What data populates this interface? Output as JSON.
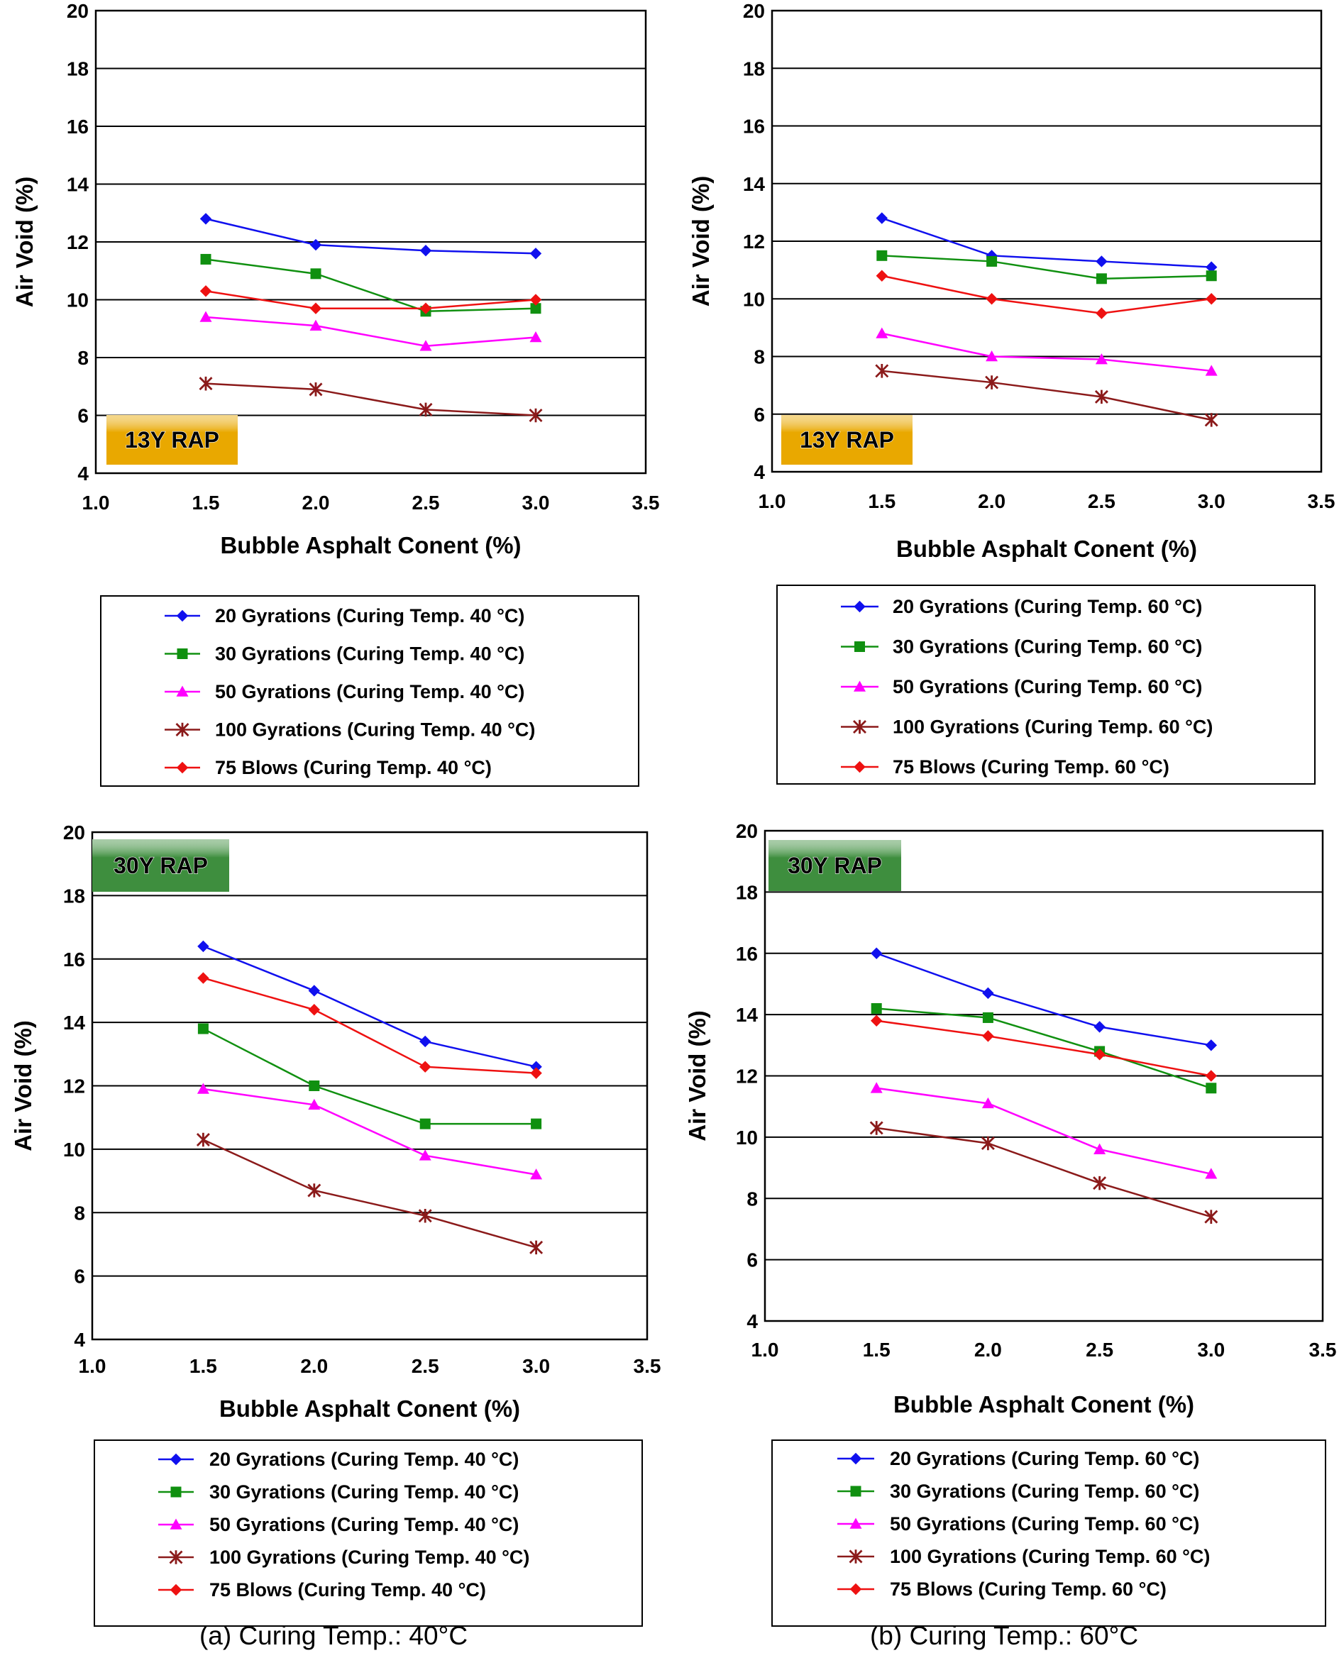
{
  "captions": {
    "a": "(a) Curing Temp.: 40°C",
    "b": "(b) Curing Temp.: 60°C"
  },
  "chart_data": [
    {
      "type": "line",
      "badge": "13Y RAP",
      "badge_color": "#e9a800",
      "xlabel": "Bubble Asphalt Conent (%)",
      "ylabel": "Air Void (%)",
      "xlim": [
        1.0,
        3.5
      ],
      "ylim": [
        4,
        20
      ],
      "xticks": [
        "1.0",
        "1.5",
        "2.0",
        "2.5",
        "3.0",
        "3.5"
      ],
      "yticks": [
        "4",
        "6",
        "8",
        "10",
        "12",
        "14",
        "16",
        "18",
        "20"
      ],
      "x": [
        1.5,
        2.0,
        2.5,
        3.0
      ],
      "series": [
        {
          "name": "20 Gyrations (Curing Temp. 40 °C)",
          "color": "#1010ee",
          "marker": "diamond",
          "values": [
            12.8,
            11.9,
            11.7,
            11.6
          ]
        },
        {
          "name": "30 Gyrations (Curing Temp. 40 °C)",
          "color": "#109010",
          "marker": "square",
          "values": [
            11.4,
            10.9,
            9.6,
            9.7
          ]
        },
        {
          "name": "50 Gyrations (Curing Temp. 40 °C)",
          "color": "#ff00ff",
          "marker": "triangle",
          "values": [
            9.4,
            9.1,
            8.4,
            8.7
          ]
        },
        {
          "name": "100 Gyrations (Curing Temp. 40 °C)",
          "color": "#8b1a1a",
          "marker": "star",
          "values": [
            7.1,
            6.9,
            6.2,
            6.0
          ]
        },
        {
          "name": "75 Blows (Curing Temp. 40 °C)",
          "color": "#ee1111",
          "marker": "diamond",
          "values": [
            10.3,
            9.7,
            9.7,
            10.0
          ]
        }
      ]
    },
    {
      "type": "line",
      "badge": "13Y RAP",
      "badge_color": "#e9a800",
      "xlabel": "Bubble Asphalt Conent (%)",
      "ylabel": "Air Void (%)",
      "xlim": [
        1.0,
        3.5
      ],
      "ylim": [
        4,
        20
      ],
      "xticks": [
        "1.0",
        "1.5",
        "2.0",
        "2.5",
        "3.0",
        "3.5"
      ],
      "yticks": [
        "4",
        "6",
        "8",
        "10",
        "12",
        "14",
        "16",
        "18",
        "20"
      ],
      "x": [
        1.5,
        2.0,
        2.5,
        3.0
      ],
      "series": [
        {
          "name": "20 Gyrations (Curing Temp. 60 °C)",
          "color": "#1010ee",
          "marker": "diamond",
          "values": [
            12.8,
            11.5,
            11.3,
            11.1
          ]
        },
        {
          "name": "30 Gyrations (Curing Temp. 60 °C)",
          "color": "#109010",
          "marker": "square",
          "values": [
            11.5,
            11.3,
            10.7,
            10.8
          ]
        },
        {
          "name": "50 Gyrations (Curing Temp. 60 °C)",
          "color": "#ff00ff",
          "marker": "triangle",
          "values": [
            8.8,
            8.0,
            7.9,
            7.5
          ]
        },
        {
          "name": "100 Gyrations (Curing Temp. 60 °C)",
          "color": "#8b1a1a",
          "marker": "star",
          "values": [
            7.5,
            7.1,
            6.6,
            5.8
          ]
        },
        {
          "name": "75 Blows (Curing Temp. 60 °C)",
          "color": "#ee1111",
          "marker": "diamond",
          "values": [
            10.8,
            10.0,
            9.5,
            10.0
          ]
        }
      ]
    },
    {
      "type": "line",
      "badge": "30Y RAP",
      "badge_color": "#3e8e3e",
      "xlabel": "Bubble Asphalt Conent (%)",
      "ylabel": "Air Void (%)",
      "xlim": [
        1.0,
        3.5
      ],
      "ylim": [
        4,
        20
      ],
      "xticks": [
        "1.0",
        "1.5",
        "2.0",
        "2.5",
        "3.0",
        "3.5"
      ],
      "yticks": [
        "4",
        "6",
        "8",
        "10",
        "12",
        "14",
        "16",
        "18",
        "20"
      ],
      "x": [
        1.5,
        2.0,
        2.5,
        3.0
      ],
      "series": [
        {
          "name": "20 Gyrations (Curing Temp. 40 °C)",
          "color": "#1010ee",
          "marker": "diamond",
          "values": [
            16.4,
            15.0,
            13.4,
            12.6
          ]
        },
        {
          "name": "30 Gyrations (Curing Temp. 40 °C)",
          "color": "#109010",
          "marker": "square",
          "values": [
            13.8,
            12.0,
            10.8,
            10.8
          ]
        },
        {
          "name": "50 Gyrations (Curing Temp. 40 °C)",
          "color": "#ff00ff",
          "marker": "triangle",
          "values": [
            11.9,
            11.4,
            9.8,
            9.2
          ]
        },
        {
          "name": "100 Gyrations (Curing Temp. 40 °C)",
          "color": "#8b1a1a",
          "marker": "star",
          "values": [
            10.3,
            8.7,
            7.9,
            6.9
          ]
        },
        {
          "name": "75 Blows (Curing Temp. 40 °C)",
          "color": "#ee1111",
          "marker": "diamond",
          "values": [
            15.4,
            14.4,
            12.6,
            12.4
          ]
        }
      ]
    },
    {
      "type": "line",
      "badge": "30Y RAP",
      "badge_color": "#3e8e3e",
      "xlabel": "Bubble Asphalt Conent (%)",
      "ylabel": "Air Void (%)",
      "xlim": [
        1.0,
        3.5
      ],
      "ylim": [
        4,
        20
      ],
      "xticks": [
        "1.0",
        "1.5",
        "2.0",
        "2.5",
        "3.0",
        "3.5"
      ],
      "yticks": [
        "4",
        "6",
        "8",
        "10",
        "12",
        "14",
        "16",
        "18",
        "20"
      ],
      "x": [
        1.5,
        2.0,
        2.5,
        3.0
      ],
      "series": [
        {
          "name": "20 Gyrations (Curing Temp. 60 °C)",
          "color": "#1010ee",
          "marker": "diamond",
          "values": [
            16.0,
            14.7,
            13.6,
            13.0
          ]
        },
        {
          "name": "30 Gyrations (Curing Temp. 60 °C)",
          "color": "#109010",
          "marker": "square",
          "values": [
            14.2,
            13.9,
            12.8,
            11.6
          ]
        },
        {
          "name": "50 Gyrations (Curing Temp. 60 °C)",
          "color": "#ff00ff",
          "marker": "triangle",
          "values": [
            11.6,
            11.1,
            9.6,
            8.8
          ]
        },
        {
          "name": "100 Gyrations (Curing Temp. 60 °C)",
          "color": "#8b1a1a",
          "marker": "star",
          "values": [
            10.3,
            9.8,
            8.5,
            7.4
          ]
        },
        {
          "name": "75 Blows (Curing Temp. 60 °C)",
          "color": "#ee1111",
          "marker": "diamond",
          "values": [
            13.8,
            13.3,
            12.7,
            12.0
          ]
        }
      ]
    }
  ]
}
